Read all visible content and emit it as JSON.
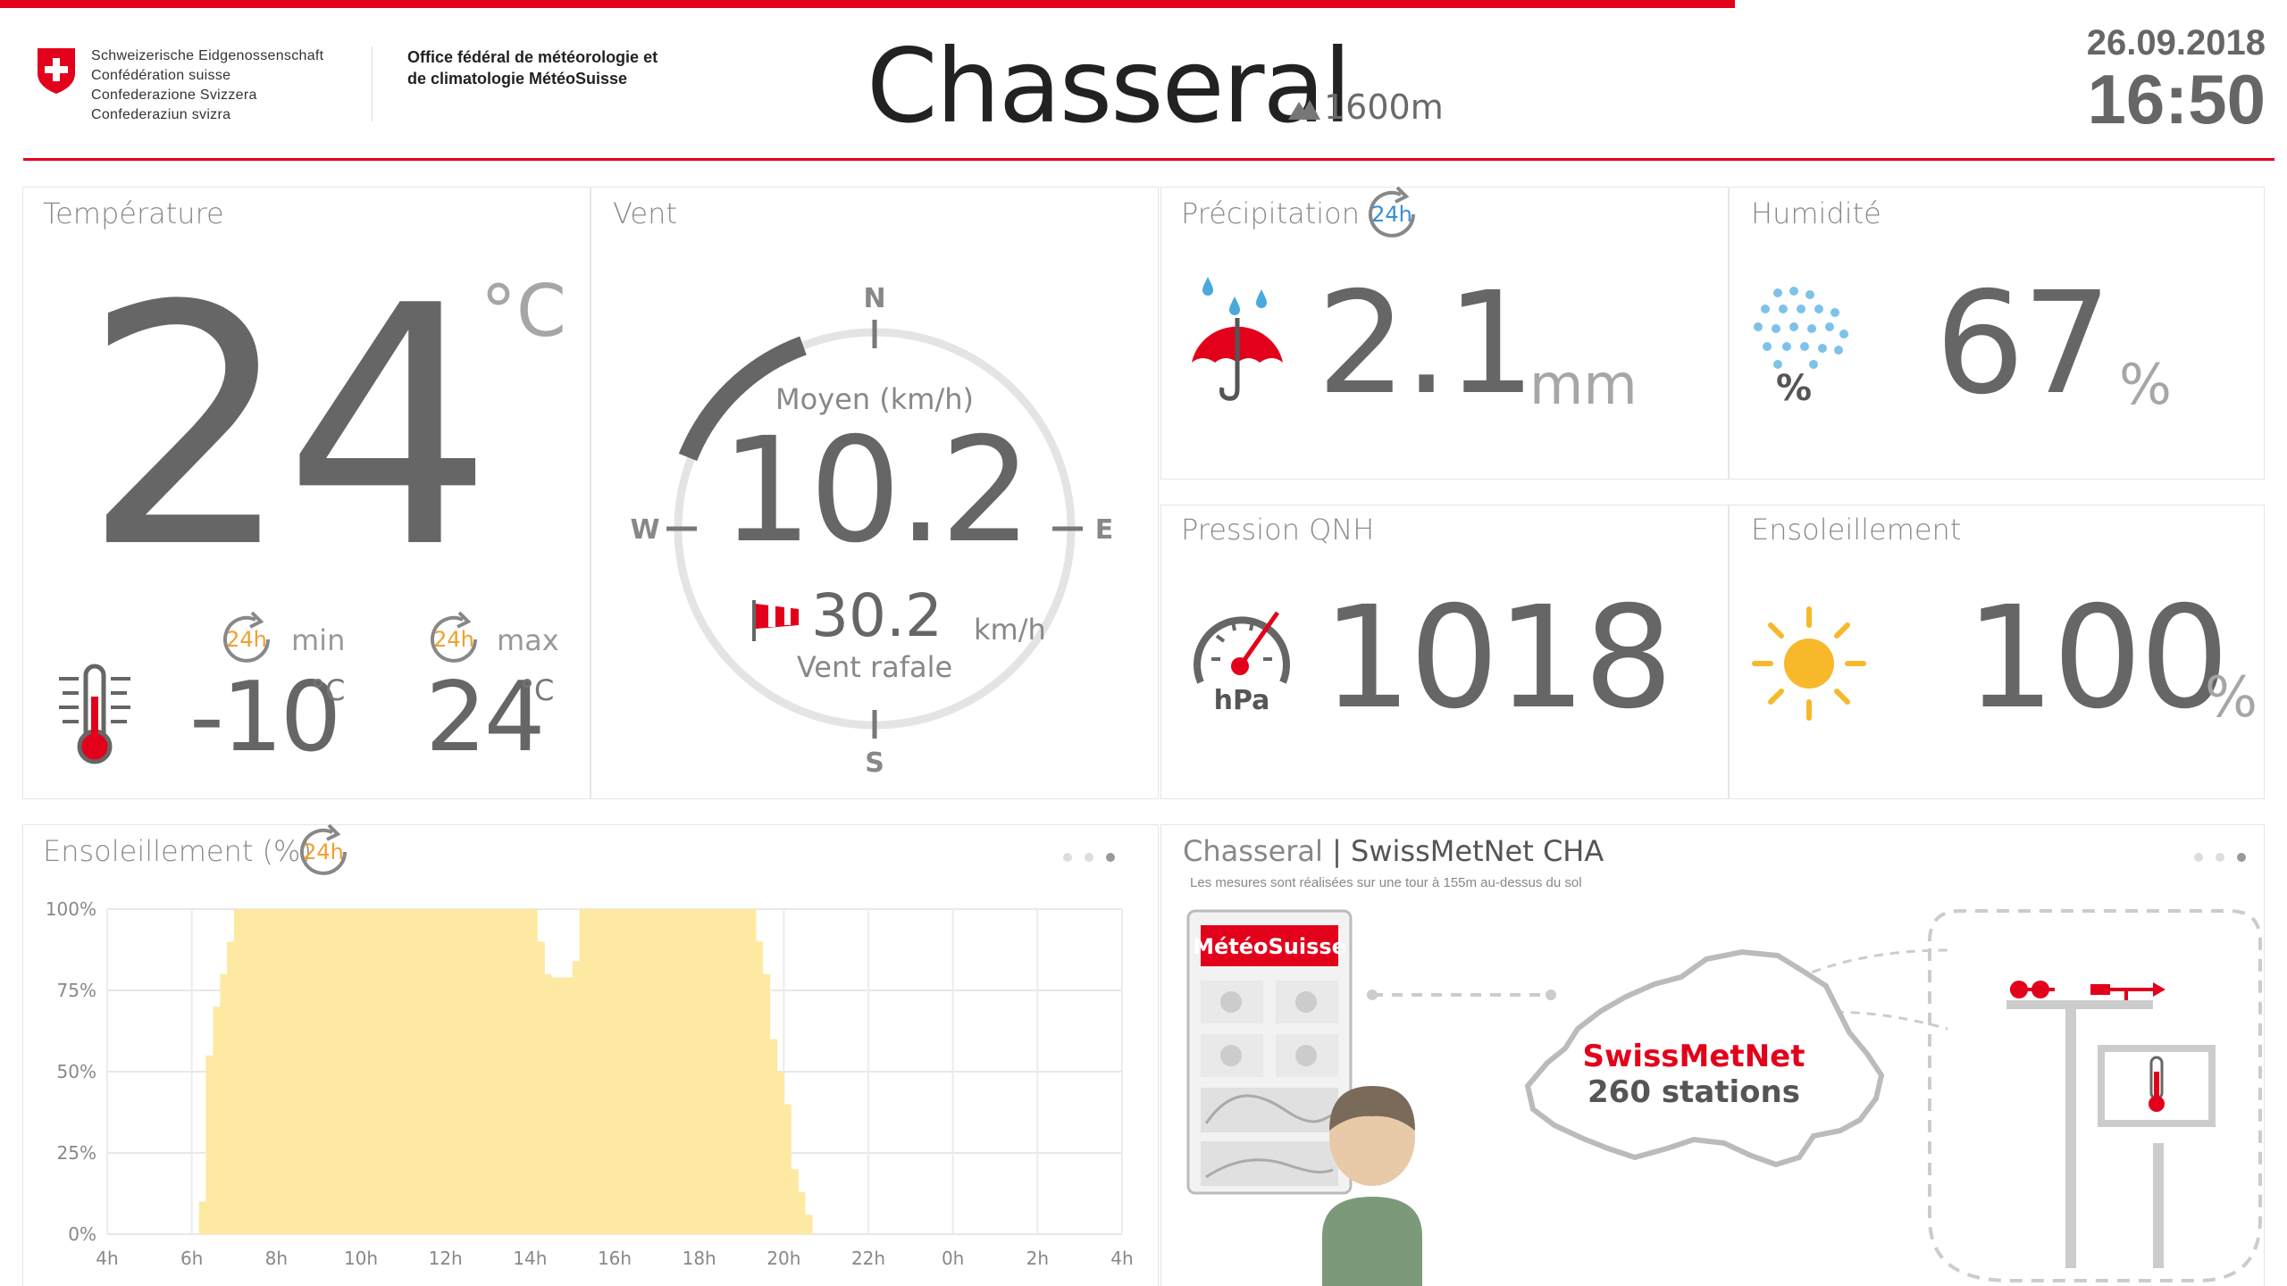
{
  "header": {
    "confederation_lines": [
      "Schweizerische Eidgenossenschaft",
      "Confédération suisse",
      "Confederazione Svizzera",
      "Confederaziun svizra"
    ],
    "office_lines": [
      "Office fédéral de météorologie et",
      "de climatologie MétéoSuisse"
    ],
    "station": "Chasseral",
    "altitude": "1600m",
    "date": "26.09.2018",
    "time": "16:50",
    "brand_color": "#e3001b"
  },
  "temperature": {
    "label": "Température",
    "value": "24",
    "unit": "°C",
    "min_period": "24h",
    "min_label": "min",
    "min_value": "-10",
    "min_unit": "°C",
    "max_period": "24h",
    "max_label": "max",
    "max_value": "24",
    "max_unit": "°C"
  },
  "wind": {
    "label": "Vent",
    "directions": {
      "n": "N",
      "e": "E",
      "s": "S",
      "w": "W"
    },
    "mean_label": "Moyen (km/h)",
    "mean_value": "10.2",
    "gust_value": "30.2",
    "gust_unit": "km/h",
    "gust_label": "Vent rafale"
  },
  "precipitation": {
    "label": "Précipitation",
    "period": "24h",
    "value": "2.1",
    "unit": "mm"
  },
  "humidity": {
    "label": "Humidité",
    "value": "67",
    "unit": "%",
    "icon_text": "%"
  },
  "pressure": {
    "label": "Pression QNH",
    "value": "1018",
    "icon_text": "hPa"
  },
  "sunshine": {
    "label": "Ensoleillement",
    "value": "100",
    "unit": "%"
  },
  "chart_panel": {
    "label": "Ensoleillement (%)",
    "period": "24h"
  },
  "chart_data": {
    "type": "bar",
    "series_color": "#fde9a1",
    "ylim": [
      0,
      100
    ],
    "yticks": [
      "100%",
      "75%",
      "50%",
      "25%",
      "0%"
    ],
    "xticks": [
      "4h",
      "6h",
      "8h",
      "10h",
      "12h",
      "14h",
      "16h",
      "18h",
      "20h",
      "22h",
      "0h",
      "2h",
      "4h"
    ],
    "x_start_hour": 4,
    "x_end_hour": 28,
    "bars": [
      {
        "h": 6.0,
        "v": 0
      },
      {
        "h": 6.17,
        "v": 10
      },
      {
        "h": 6.33,
        "v": 55
      },
      {
        "h": 6.5,
        "v": 70
      },
      {
        "h": 6.67,
        "v": 80
      },
      {
        "h": 6.83,
        "v": 90
      },
      {
        "h": 7.0,
        "v": 100
      },
      {
        "h": 7.17,
        "v": 100
      },
      {
        "h": 7.33,
        "v": 100
      },
      {
        "h": 7.5,
        "v": 100
      },
      {
        "h": 7.67,
        "v": 100
      },
      {
        "h": 7.83,
        "v": 100
      },
      {
        "h": 8.0,
        "v": 100
      },
      {
        "h": 8.17,
        "v": 100
      },
      {
        "h": 8.33,
        "v": 100
      },
      {
        "h": 8.5,
        "v": 100
      },
      {
        "h": 8.67,
        "v": 100
      },
      {
        "h": 8.83,
        "v": 100
      },
      {
        "h": 9.0,
        "v": 100
      },
      {
        "h": 9.17,
        "v": 100
      },
      {
        "h": 9.33,
        "v": 100
      },
      {
        "h": 9.5,
        "v": 100
      },
      {
        "h": 9.67,
        "v": 100
      },
      {
        "h": 9.83,
        "v": 100
      },
      {
        "h": 10.0,
        "v": 100
      },
      {
        "h": 10.17,
        "v": 100
      },
      {
        "h": 10.33,
        "v": 100
      },
      {
        "h": 10.5,
        "v": 100
      },
      {
        "h": 10.67,
        "v": 100
      },
      {
        "h": 10.83,
        "v": 100
      },
      {
        "h": 11.0,
        "v": 100
      },
      {
        "h": 11.17,
        "v": 100
      },
      {
        "h": 11.33,
        "v": 100
      },
      {
        "h": 11.5,
        "v": 100
      },
      {
        "h": 11.67,
        "v": 100
      },
      {
        "h": 11.83,
        "v": 100
      },
      {
        "h": 12.0,
        "v": 100
      },
      {
        "h": 12.17,
        "v": 100
      },
      {
        "h": 12.33,
        "v": 100
      },
      {
        "h": 12.5,
        "v": 100
      },
      {
        "h": 12.67,
        "v": 100
      },
      {
        "h": 12.83,
        "v": 100
      },
      {
        "h": 13.0,
        "v": 100
      },
      {
        "h": 13.17,
        "v": 100
      },
      {
        "h": 13.33,
        "v": 100
      },
      {
        "h": 13.5,
        "v": 100
      },
      {
        "h": 13.67,
        "v": 100
      },
      {
        "h": 13.83,
        "v": 100
      },
      {
        "h": 14.0,
        "v": 100
      },
      {
        "h": 14.17,
        "v": 90
      },
      {
        "h": 14.33,
        "v": 80
      },
      {
        "h": 14.5,
        "v": 79
      },
      {
        "h": 14.67,
        "v": 79
      },
      {
        "h": 14.83,
        "v": 79
      },
      {
        "h": 15.0,
        "v": 84
      },
      {
        "h": 15.17,
        "v": 100
      },
      {
        "h": 15.33,
        "v": 100
      },
      {
        "h": 15.5,
        "v": 100
      },
      {
        "h": 15.67,
        "v": 100
      },
      {
        "h": 15.83,
        "v": 100
      },
      {
        "h": 16.0,
        "v": 100
      },
      {
        "h": 16.17,
        "v": 100
      },
      {
        "h": 16.33,
        "v": 100
      },
      {
        "h": 16.5,
        "v": 100
      },
      {
        "h": 16.67,
        "v": 100
      },
      {
        "h": 16.83,
        "v": 100
      },
      {
        "h": 17.0,
        "v": 100
      },
      {
        "h": 17.17,
        "v": 100
      },
      {
        "h": 17.33,
        "v": 100
      },
      {
        "h": 17.5,
        "v": 100
      },
      {
        "h": 17.67,
        "v": 100
      },
      {
        "h": 17.83,
        "v": 100
      },
      {
        "h": 18.0,
        "v": 100
      },
      {
        "h": 18.17,
        "v": 100
      },
      {
        "h": 18.33,
        "v": 100
      },
      {
        "h": 18.5,
        "v": 100
      },
      {
        "h": 18.67,
        "v": 100
      },
      {
        "h": 18.83,
        "v": 100
      },
      {
        "h": 19.0,
        "v": 100
      },
      {
        "h": 19.17,
        "v": 100
      },
      {
        "h": 19.33,
        "v": 90
      },
      {
        "h": 19.5,
        "v": 80
      },
      {
        "h": 19.67,
        "v": 60
      },
      {
        "h": 19.83,
        "v": 50
      },
      {
        "h": 20.0,
        "v": 40
      },
      {
        "h": 20.17,
        "v": 20
      },
      {
        "h": 20.33,
        "v": 13
      },
      {
        "h": 20.5,
        "v": 6
      },
      {
        "h": 20.67,
        "v": 0
      }
    ]
  },
  "network": {
    "title_a": "Chasseral",
    "separator": "|",
    "title_b": "SwissMetNet CHA",
    "subtitle": "Les mesures sont réalisées sur une tour à 155m au-dessus du sol",
    "app_brand": "MétéoSuisse",
    "net_name": "SwissMetNet",
    "net_count": "260 stations"
  }
}
